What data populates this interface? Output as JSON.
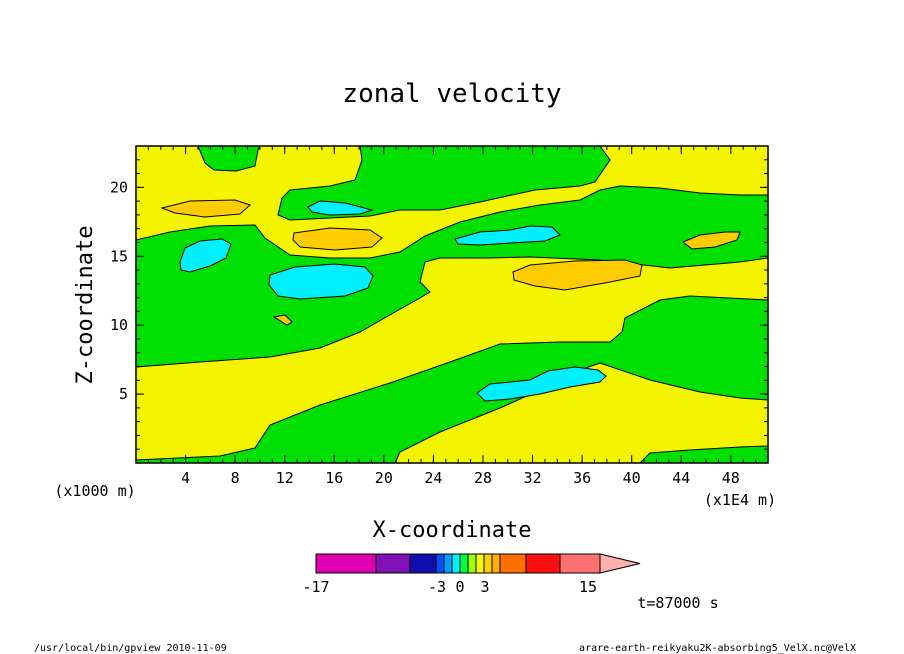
{
  "chart_data": {
    "type": "heatmap",
    "title": "zonal velocity",
    "xlabel": "X-coordinate",
    "ylabel": "Z-coordinate",
    "x_unit": "(x1E4 m)",
    "y_unit": "(x1000 m)",
    "xlim": [
      0,
      51
    ],
    "ylim": [
      0,
      23
    ],
    "xticks": [
      "4",
      "8",
      "12",
      "16",
      "20",
      "24",
      "28",
      "32",
      "36",
      "40",
      "44",
      "48"
    ],
    "yticks": [
      "5",
      "10",
      "15",
      "20"
    ],
    "colorbar": {
      "min_label": "-17",
      "max_label": "15",
      "tick_labels": [
        "-3",
        "0",
        "3"
      ],
      "segments": [
        {
          "color": "#e000b0",
          "from": -17,
          "to": -12
        },
        {
          "color": "#8010b8",
          "from": -12,
          "to": -9
        },
        {
          "color": "#1010b0",
          "from": -9,
          "to": -6
        },
        {
          "color": "#0050ff",
          "from": -6,
          "to": -5
        },
        {
          "color": "#00a0ff",
          "from": -5,
          "to": -4
        },
        {
          "color": "#00f0ff",
          "from": -4,
          "to": -3
        },
        {
          "color": "#00ff40",
          "from": -3,
          "to": -2
        },
        {
          "color": "#a0ff00",
          "from": -2,
          "to": -1
        },
        {
          "color": "#f8f800",
          "from": -1,
          "to": 0
        },
        {
          "color": "#ffd000",
          "from": 0,
          "to": 1
        },
        {
          "color": "#ffb000",
          "from": 1,
          "to": 3
        },
        {
          "color": "#ff7000",
          "from": 3,
          "to": 6
        },
        {
          "color": "#ff1010",
          "from": 6,
          "to": 10
        },
        {
          "color": "#ff7070",
          "from": 10,
          "to": 15
        },
        {
          "color": "#ffb0b0",
          "from": 15,
          "to": 18
        }
      ]
    },
    "fill_colors": {
      "background": "#00e000",
      "yellow": "#f4f400",
      "orange": "#ffcc00",
      "cyan": "#00f0ff"
    }
  },
  "time_label": "t=87000 s",
  "footer_left": "/usr/local/bin/gpview  2010-11-09",
  "footer_right": "arare-earth-reikyaku2K-absorbing5_VelX.nc@VelX"
}
